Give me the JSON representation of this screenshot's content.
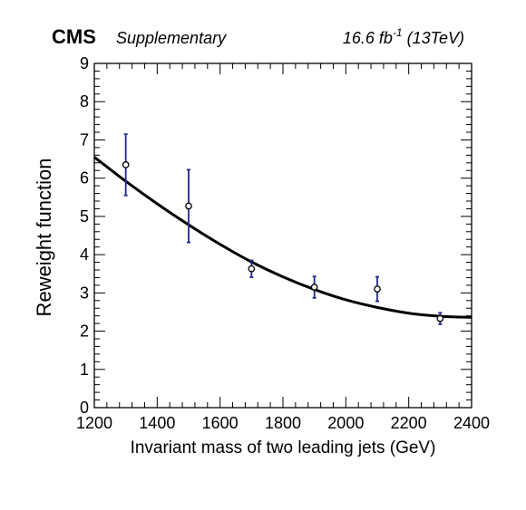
{
  "header": {
    "experiment": "CMS",
    "tag": "Supplementary",
    "lumi_value": "16.6 fb",
    "lumi_exp": "-1",
    "lumi_energy": "(13TeV)"
  },
  "chart_data": {
    "type": "scatter",
    "xlabel": "Invariant mass of two leading jets (GeV)",
    "ylabel": "Reweight function",
    "xlim": [
      1200,
      2400
    ],
    "ylim": [
      0,
      9
    ],
    "x_ticks": [
      "1200",
      "1400",
      "1600",
      "1800",
      "2000",
      "2200",
      "2400"
    ],
    "y_ticks": [
      "0",
      "1",
      "2",
      "3",
      "4",
      "5",
      "6",
      "7",
      "8",
      "9"
    ],
    "grid": false,
    "series": [
      {
        "kind": "points_with_errors",
        "x": [
          1300,
          1500,
          1700,
          1900,
          2100,
          2300
        ],
        "y": [
          6.35,
          5.27,
          3.63,
          3.15,
          3.1,
          2.33
        ],
        "yerr": [
          0.8,
          0.95,
          0.22,
          0.28,
          0.32,
          0.15
        ]
      },
      {
        "kind": "fit_curve",
        "x": [
          1200,
          1300,
          1400,
          1500,
          1600,
          1700,
          1800,
          1900,
          2000,
          2100,
          2200,
          2300,
          2400
        ],
        "y": [
          6.55,
          5.92,
          5.33,
          4.78,
          4.27,
          3.81,
          3.42,
          3.09,
          2.82,
          2.62,
          2.47,
          2.39,
          2.36
        ]
      }
    ],
    "colors": {
      "error_bar": "#1f2a8c",
      "curve": "#000000",
      "marker": "#000000"
    }
  }
}
